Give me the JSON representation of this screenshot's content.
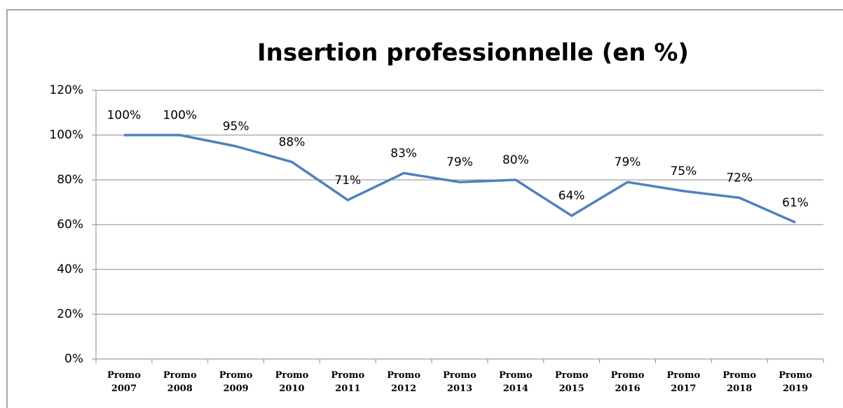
{
  "chart_data": {
    "type": "line",
    "title": "Insertion professionnelle  (en %)",
    "categories": [
      "Promo 2007",
      "Promo 2008",
      "Promo 2009",
      "Promo 2010",
      "Promo 2011",
      "Promo 2012",
      "Promo 2013",
      "Promo 2014",
      "Promo 2015",
      "Promo 2016",
      "Promo 2017",
      "Promo 2018",
      "Promo 2019"
    ],
    "values": [
      100,
      100,
      95,
      88,
      71,
      83,
      79,
      80,
      64,
      79,
      75,
      72,
      61
    ],
    "value_labels": [
      "100%",
      "100%",
      "95%",
      "88%",
      "71%",
      "83%",
      "79%",
      "80%",
      "64%",
      "79%",
      "75%",
      "72%",
      "61%"
    ],
    "color": "#4f81bd",
    "ylim": [
      0,
      120
    ],
    "yticks": [
      {
        "value": 0,
        "label": "0%"
      },
      {
        "value": 20,
        "label": "20%"
      },
      {
        "value": 40,
        "label": "40%"
      },
      {
        "value": 60,
        "label": "60%"
      },
      {
        "value": 80,
        "label": "80%"
      },
      {
        "value": 100,
        "label": "100%"
      },
      {
        "value": 120,
        "label": "120%"
      }
    ],
    "grid": true
  }
}
